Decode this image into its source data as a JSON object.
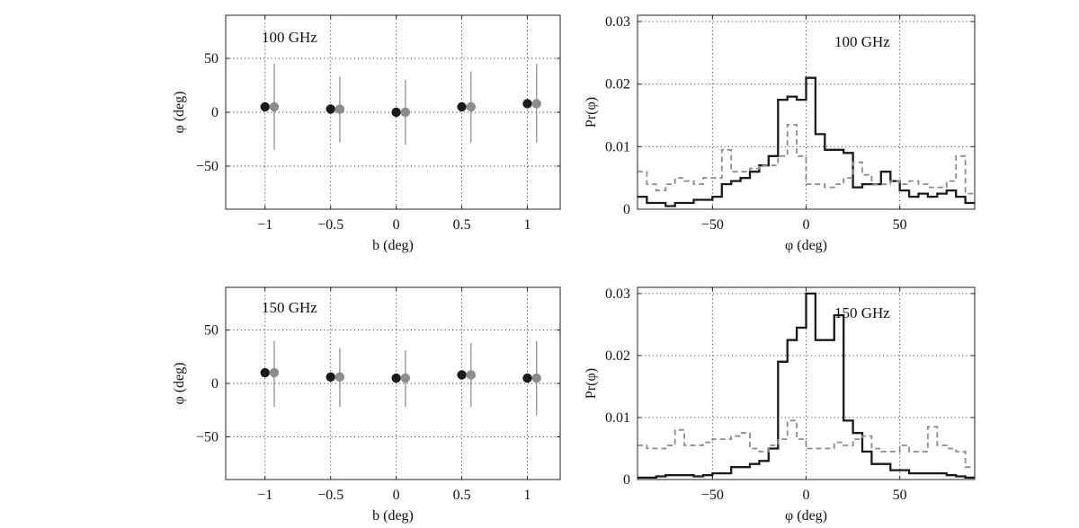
{
  "colors": {
    "series_dark": "#1a1a1a",
    "series_light": "#8c8c8c",
    "errorbar": "#999999"
  },
  "chart_data": [
    {
      "type": "scatter",
      "annotation": "100 GHz",
      "xlabel": "b (deg)",
      "ylabel": "φ (deg)",
      "xlim": [
        -1.3,
        1.25
      ],
      "ylim": [
        -90,
        90
      ],
      "xticks": [
        -1,
        -0.5,
        0,
        0.5,
        1
      ],
      "xtick_labels": [
        "−1",
        "−0.5",
        "0",
        "0.5",
        "1"
      ],
      "yticks": [
        -50,
        0,
        50
      ],
      "ytick_labels": [
        "−50",
        "0",
        "50"
      ],
      "grid": true,
      "series": [
        {
          "color": "#1a1a1a",
          "points": [
            [
              -1.0,
              5
            ],
            [
              -0.5,
              3
            ],
            [
              0.0,
              0
            ],
            [
              0.5,
              5
            ],
            [
              1.0,
              8
            ]
          ]
        },
        {
          "color": "#8c8c8c",
          "points": [
            [
              -0.93,
              5
            ],
            [
              -0.43,
              3
            ],
            [
              0.07,
              0
            ],
            [
              0.57,
              5
            ],
            [
              1.07,
              8
            ]
          ],
          "errors": [
            [
              -35,
              45
            ],
            [
              -28,
              33
            ],
            [
              -30,
              30
            ],
            [
              -28,
              38
            ],
            [
              -28,
              45
            ]
          ]
        }
      ]
    },
    {
      "type": "line",
      "step": true,
      "annotation": "100 GHz",
      "xlabel": "φ (deg)",
      "ylabel": "Pr(φ)",
      "xlim": [
        -90,
        90
      ],
      "ylim": [
        0,
        0.031
      ],
      "xticks": [
        -50,
        0,
        50
      ],
      "xtick_labels": [
        "−50",
        "0",
        "50"
      ],
      "yticks": [
        0,
        0.01,
        0.02,
        0.03
      ],
      "ytick_labels": [
        "0",
        "0.01",
        "0.02",
        "0.03"
      ],
      "grid": true,
      "bin_edges": [
        -90,
        -85,
        -80,
        -75,
        -70,
        -65,
        -60,
        -55,
        -50,
        -45,
        -40,
        -35,
        -30,
        -25,
        -20,
        -15,
        -10,
        -5,
        0,
        5,
        10,
        15,
        20,
        25,
        30,
        35,
        40,
        45,
        50,
        55,
        60,
        65,
        70,
        75,
        80,
        85,
        90
      ],
      "series": [
        {
          "style": "solid",
          "color": "#1a1a1a",
          "values": [
            0.002,
            0.001,
            0.001,
            0.0005,
            0.001,
            0.001,
            0.0015,
            0.0015,
            0.002,
            0.004,
            0.0045,
            0.005,
            0.006,
            0.007,
            0.0085,
            0.0175,
            0.018,
            0.0175,
            0.021,
            0.012,
            0.0095,
            0.0095,
            0.009,
            0.0035,
            0.004,
            0.004,
            0.006,
            0.0045,
            0.003,
            0.002,
            0.0025,
            0.002,
            0.0025,
            0.003,
            0.002,
            0.001
          ]
        },
        {
          "style": "dashed",
          "color": "#8c8c8c",
          "values": [
            0.006,
            0.004,
            0.003,
            0.004,
            0.005,
            0.0045,
            0.004,
            0.005,
            0.005,
            0.0095,
            0.006,
            0.006,
            0.0065,
            0.007,
            0.007,
            0.0085,
            0.0135,
            0.0085,
            0.004,
            0.004,
            0.0035,
            0.004,
            0.005,
            0.0075,
            0.0055,
            0.004,
            0.004,
            0.0045,
            0.004,
            0.0045,
            0.004,
            0.0035,
            0.0035,
            0.0045,
            0.0085,
            0.0025
          ]
        }
      ]
    },
    {
      "type": "scatter",
      "annotation": "150 GHz",
      "xlabel": "b (deg)",
      "ylabel": "φ (deg)",
      "xlim": [
        -1.3,
        1.25
      ],
      "ylim": [
        -90,
        90
      ],
      "xticks": [
        -1,
        -0.5,
        0,
        0.5,
        1
      ],
      "xtick_labels": [
        "−1",
        "−0.5",
        "0",
        "0.5",
        "1"
      ],
      "yticks": [
        -50,
        0,
        50
      ],
      "ytick_labels": [
        "−50",
        "0",
        "50"
      ],
      "grid": true,
      "series": [
        {
          "color": "#1a1a1a",
          "points": [
            [
              -1.0,
              10
            ],
            [
              -0.5,
              6
            ],
            [
              0.0,
              5
            ],
            [
              0.5,
              8
            ],
            [
              1.0,
              5
            ]
          ]
        },
        {
          "color": "#8c8c8c",
          "points": [
            [
              -0.93,
              10
            ],
            [
              -0.43,
              6
            ],
            [
              0.07,
              5
            ],
            [
              0.57,
              8
            ],
            [
              1.07,
              5
            ]
          ],
          "errors": [
            [
              -22,
              40
            ],
            [
              -22,
              33
            ],
            [
              -22,
              31
            ],
            [
              -22,
              38
            ],
            [
              -30,
              40
            ]
          ]
        }
      ]
    },
    {
      "type": "line",
      "step": true,
      "annotation": "150 GHz",
      "xlabel": "φ (deg)",
      "ylabel": "Pr(φ)",
      "xlim": [
        -90,
        90
      ],
      "ylim": [
        0,
        0.031
      ],
      "xticks": [
        -50,
        0,
        50
      ],
      "xtick_labels": [
        "−50",
        "0",
        "50"
      ],
      "yticks": [
        0,
        0.01,
        0.02,
        0.03
      ],
      "ytick_labels": [
        "0",
        "0.01",
        "0.02",
        "0.03"
      ],
      "grid": true,
      "bin_edges": [
        -90,
        -85,
        -80,
        -75,
        -70,
        -65,
        -60,
        -55,
        -50,
        -45,
        -40,
        -35,
        -30,
        -25,
        -20,
        -15,
        -10,
        -5,
        0,
        5,
        10,
        15,
        20,
        25,
        30,
        35,
        40,
        45,
        50,
        55,
        60,
        65,
        70,
        75,
        80,
        85,
        90
      ],
      "series": [
        {
          "style": "solid",
          "color": "#1a1a1a",
          "values": [
            0.0003,
            0.0003,
            0.0005,
            0.0007,
            0.0007,
            0.0007,
            0.0005,
            0.0007,
            0.001,
            0.001,
            0.002,
            0.002,
            0.0025,
            0.003,
            0.005,
            0.019,
            0.0225,
            0.0245,
            0.03,
            0.0225,
            0.0225,
            0.0265,
            0.0095,
            0.0075,
            0.0045,
            0.0025,
            0.0025,
            0.0015,
            0.0015,
            0.001,
            0.001,
            0.001,
            0.001,
            0.0007,
            0.0005,
            0.0003
          ]
        },
        {
          "style": "dashed",
          "color": "#8c8c8c",
          "values": [
            0.0055,
            0.005,
            0.005,
            0.0055,
            0.008,
            0.0055,
            0.0055,
            0.006,
            0.0065,
            0.0065,
            0.007,
            0.0075,
            0.005,
            0.0045,
            0.0055,
            0.0065,
            0.0095,
            0.0065,
            0.005,
            0.005,
            0.005,
            0.006,
            0.0055,
            0.0065,
            0.007,
            0.005,
            0.0045,
            0.0045,
            0.0055,
            0.0045,
            0.0045,
            0.0085,
            0.0055,
            0.005,
            0.0045,
            0.002
          ]
        }
      ]
    }
  ]
}
